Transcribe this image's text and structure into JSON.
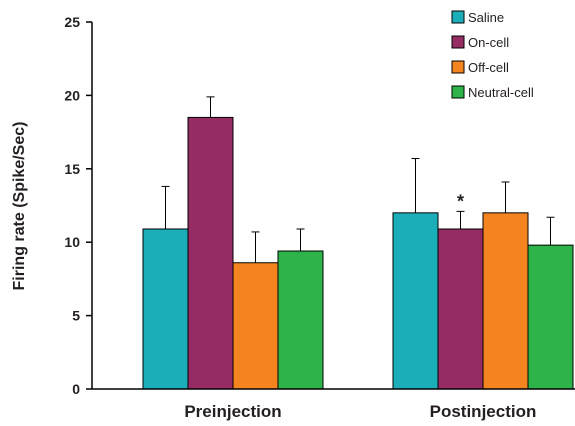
{
  "chart_data": {
    "type": "bar",
    "categories": [
      "Preinjection",
      "Postinjection"
    ],
    "series": [
      {
        "name": "Saline",
        "color": "#1BAEB9",
        "values": [
          10.9,
          12.0
        ],
        "errors": [
          2.9,
          3.7
        ]
      },
      {
        "name": "On-cell",
        "color": "#952C63",
        "values": [
          18.5,
          10.9
        ],
        "errors": [
          1.4,
          1.2
        ]
      },
      {
        "name": "Off-cell",
        "color": "#F4841F",
        "values": [
          8.6,
          12.0
        ],
        "errors": [
          2.1,
          2.1
        ]
      },
      {
        "name": "Neutral-cell",
        "color": "#2DB34A",
        "values": [
          9.4,
          9.8
        ],
        "errors": [
          1.5,
          1.9
        ]
      }
    ],
    "annotations": [
      {
        "text": "*",
        "category": "Postinjection",
        "series": "On-cell"
      }
    ],
    "title": "",
    "xlabel": "",
    "ylabel": "Firing rate (Spike/Sec)",
    "ylim": [
      0,
      25
    ],
    "yticks": [
      0,
      5,
      10,
      15,
      20,
      25
    ],
    "grid": false,
    "legend_position": "top-right"
  }
}
